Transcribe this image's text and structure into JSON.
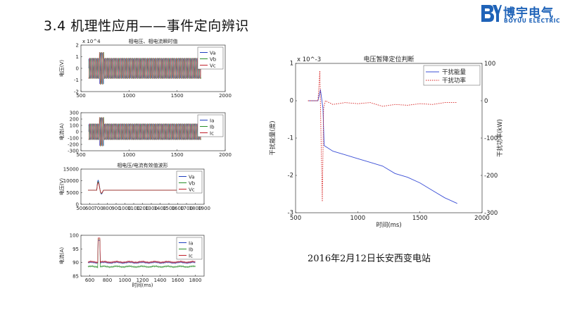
{
  "slide": {
    "title": "3.4 机理性应用——事件定向辨识",
    "caption": "2016年2月12日长安西变电站"
  },
  "logo": {
    "mark": "BY",
    "name_cn": "博宇电气",
    "name_en": "BOYUU ELECTRIC",
    "color": "#1f63b8",
    "icon": "boyuu-logo-mark"
  },
  "chart_data": [
    {
      "type": "line",
      "title": "相电压、相电流瞬时值",
      "xlabel": "",
      "ylabel": "电压(V)",
      "xlim": [
        500,
        2000
      ],
      "xticks": [
        500,
        1000,
        1500,
        2000
      ],
      "ylim": [
        -2,
        2
      ],
      "yticks": [
        -2,
        -1,
        0,
        1,
        2
      ],
      "y_exponent": "x 10^4",
      "legend": [
        "Va",
        "Vb",
        "Vc"
      ],
      "legend_position": "top-right",
      "colors": [
        "#1f3fbf",
        "#2a8f2a",
        "#c0202a"
      ],
      "signal": {
        "start": 580,
        "end": 1750,
        "amplitude": 0.9,
        "event_at": 700,
        "event_peak": 1.4
      }
    },
    {
      "type": "line",
      "title": "",
      "xlabel": "",
      "ylabel": "电流(A)",
      "xlim": [
        500,
        2000
      ],
      "xticks": [
        500,
        1000,
        1500,
        2000
      ],
      "ylim": [
        -300,
        300
      ],
      "yticks": [
        -300,
        -200,
        -100,
        0,
        100,
        200,
        300
      ],
      "legend": [
        "Ia",
        "Ib",
        "Ic"
      ],
      "legend_position": "top-right",
      "colors": [
        "#1f3fbf",
        "#2a8f2a",
        "#c0202a"
      ],
      "signal": {
        "start": 580,
        "end": 1750,
        "amplitude": 130,
        "event_at": 700,
        "event_peak": 230
      }
    },
    {
      "type": "line",
      "title": "相电压/电流有效值波形",
      "xlabel": "",
      "ylabel": "电压(V)",
      "xlim": [
        500,
        1900
      ],
      "xticks": [
        500,
        600,
        700,
        800,
        900,
        1000,
        1100,
        1200,
        1300,
        1400,
        1500,
        1600,
        1700,
        1800,
        1900
      ],
      "ylim": [
        0,
        15000
      ],
      "yticks": [
        0,
        5000,
        10000,
        15000
      ],
      "legend": [
        "Va",
        "Vb",
        "Vc"
      ],
      "legend_position": "top-right",
      "colors": [
        "#1f3fbf",
        "#2a8f2a",
        "#c0202a"
      ],
      "steady": 6000,
      "start": 580,
      "end": 1800
    },
    {
      "type": "line",
      "title": "",
      "xlabel": "时间(ms)",
      "ylabel": "电流(A)",
      "xlim": [
        500,
        1900
      ],
      "xticks": [
        600,
        800,
        1000,
        1200,
        1400,
        1600,
        1800
      ],
      "ylim": [
        85,
        100
      ],
      "yticks": [
        85,
        90,
        95,
        100
      ],
      "legend": [
        "Ia",
        "Ib",
        "Ic"
      ],
      "legend_position": "top-right",
      "colors": [
        "#1f3fbf",
        "#2a8f2a",
        "#c0202a"
      ],
      "start": 580,
      "end": 1800
    },
    {
      "type": "line",
      "title": "电压暂降定位判断",
      "xlabel": "时间(ms)",
      "ylabel": "干扰能量(度)",
      "ylabel_right": "干扰功率(kW)",
      "xlim": [
        500,
        2000
      ],
      "xticks": [
        500,
        1000,
        1500,
        2000
      ],
      "ylim": [
        -3,
        1
      ],
      "yticks": [
        -3,
        -2,
        -1,
        0,
        1
      ],
      "y_exponent": "x 10^-3",
      "ylim_right": [
        -300,
        100
      ],
      "yticks_right": [
        -300,
        -200,
        -100,
        0,
        100
      ],
      "legend_position": "top-right",
      "series": [
        {
          "name": "干扰能量",
          "axis": "left",
          "color": "#3b4fd6",
          "style": "solid",
          "x": [
            600,
            680,
            700,
            720,
            730,
            800,
            900,
            1000,
            1100,
            1200,
            1300,
            1400,
            1500,
            1600,
            1700,
            1800
          ],
          "y": [
            0,
            0,
            0.3,
            -0.2,
            -1.2,
            -1.35,
            -1.45,
            -1.55,
            -1.65,
            -1.75,
            -1.95,
            -2.05,
            -2.2,
            -2.4,
            -2.6,
            -2.75
          ]
        },
        {
          "name": "干扰功率",
          "axis": "right",
          "color": "#d62020",
          "style": "dotted",
          "x": [
            600,
            680,
            695,
            705,
            715,
            725,
            740,
            800,
            900,
            1000,
            1100,
            1200,
            1300,
            1400,
            1500,
            1600,
            1700,
            1800
          ],
          "y": [
            0,
            0,
            80,
            -100,
            -270,
            -20,
            0,
            -10,
            -5,
            -8,
            -5,
            -15,
            -10,
            -12,
            -8,
            -10,
            -5,
            -5
          ]
        }
      ]
    }
  ]
}
